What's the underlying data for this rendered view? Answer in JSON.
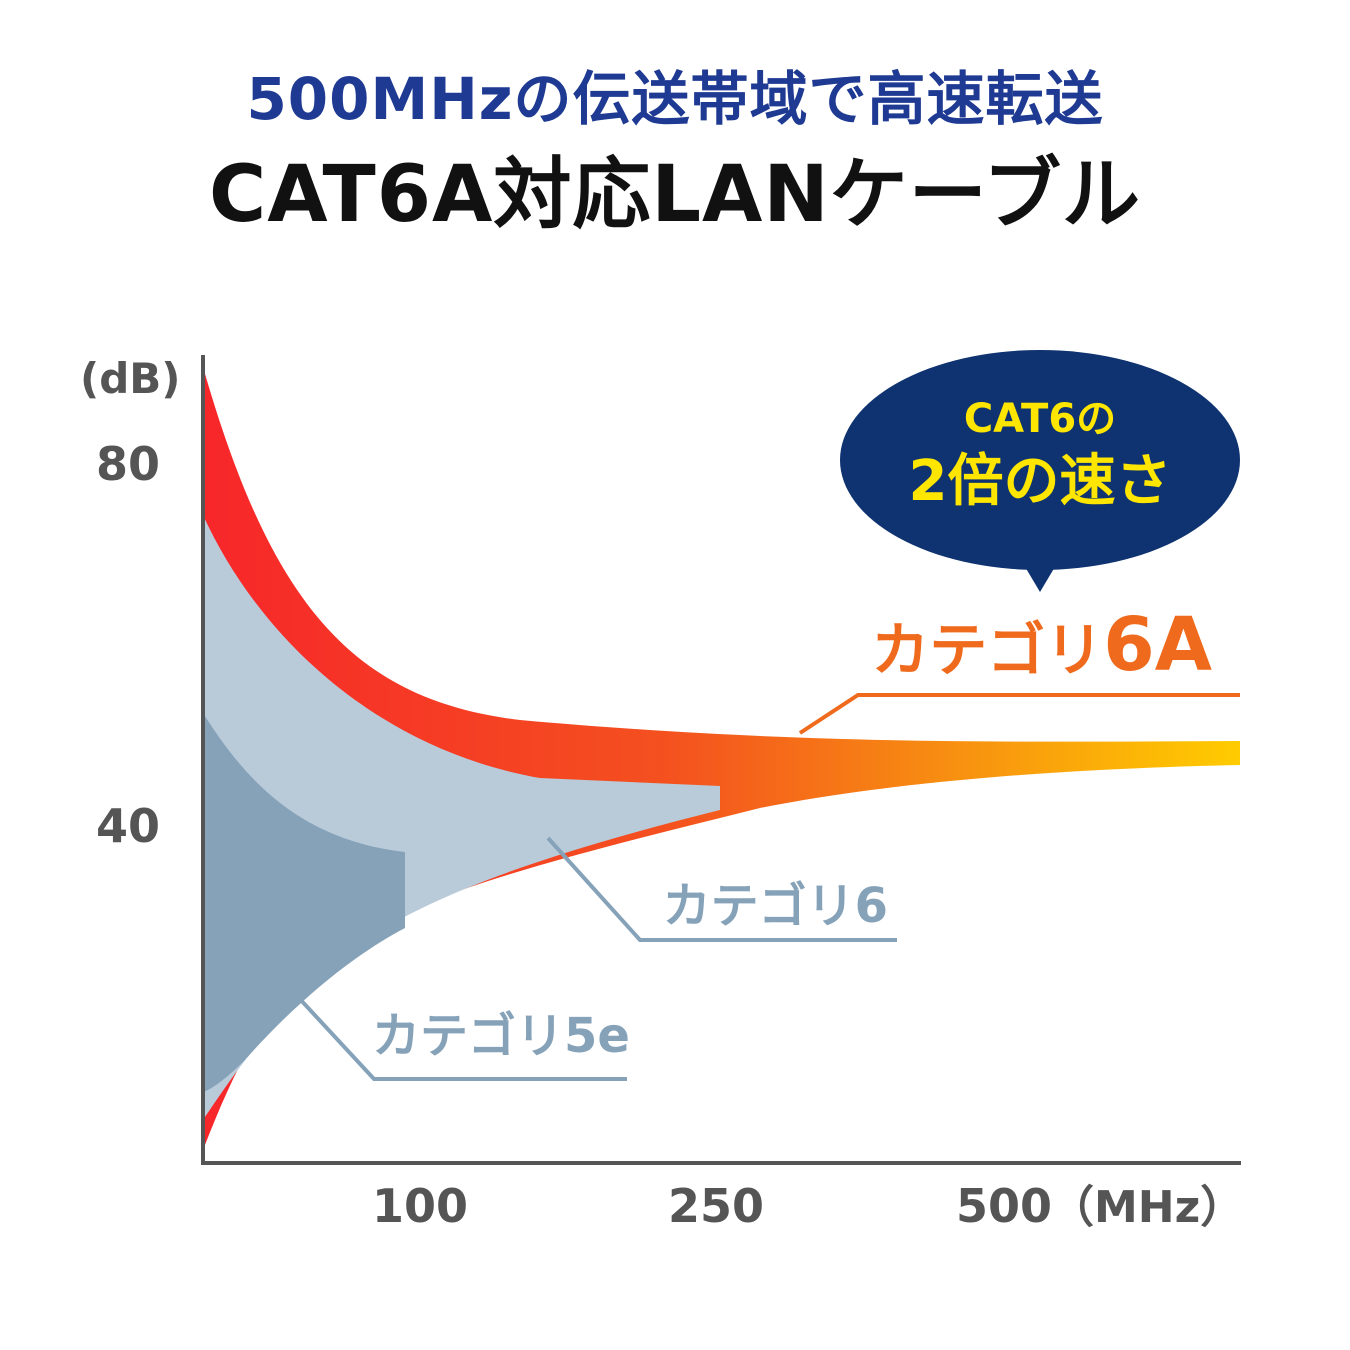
{
  "header": {
    "subtitle": "500MHzの伝送帯域で高速転送",
    "title": "CAT6A対応LANケーブル"
  },
  "chart_data": {
    "type": "area",
    "y_unit": "(dB)",
    "x_unit": "（MHz）",
    "y_ticks": [
      80,
      40
    ],
    "x_ticks": [
      "100",
      "250",
      "500"
    ],
    "series": [
      {
        "name": "カテゴリ5e",
        "bandwidth_mhz": 100,
        "color": "#85a2b9"
      },
      {
        "name": "カテゴリ6",
        "bandwidth_mhz": 250,
        "color": "#b9cad9"
      },
      {
        "name": "カテゴリ",
        "name_suffix": "6A",
        "bandwidth_mhz": 500,
        "color_start": "#f7262a",
        "color_end": "#ffcc00"
      }
    ],
    "callout": {
      "line1": "CAT6の",
      "line2": "2倍の速さ",
      "bg": "#0f3370",
      "text_color": "#ffe600"
    },
    "grid": false
  }
}
